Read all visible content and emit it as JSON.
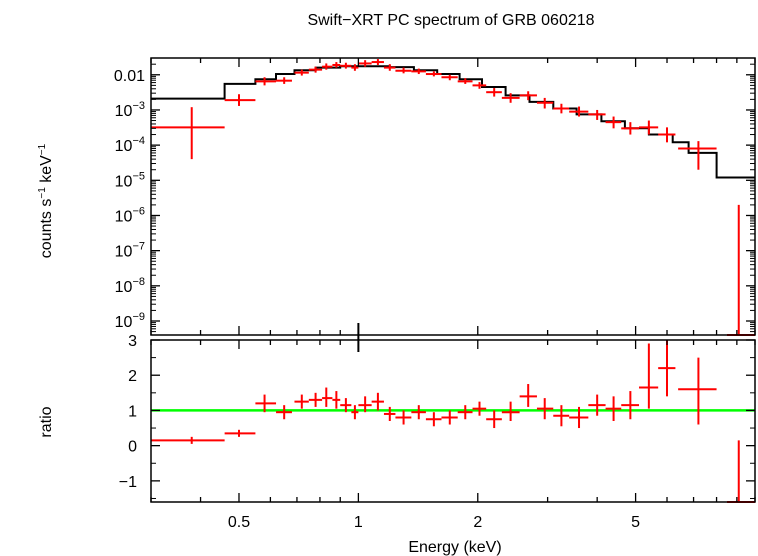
{
  "chart_data": [
    {
      "type": "scatter",
      "panel": "top",
      "title": "Swift−XRT PC spectrum of GRB 060218",
      "ylabel_parts": [
        "counts s",
        "−1",
        " keV",
        "−1"
      ],
      "ylabel": "counts s−1 keV−1",
      "yscale": "log",
      "xlim": [
        0.3,
        10
      ],
      "ylim": [
        4e-10,
        0.03
      ],
      "ytick_labels": [
        {
          "v": 0.01,
          "text": "0.01"
        },
        {
          "v": 0.001,
          "base": "10",
          "exp": "−3"
        },
        {
          "v": 0.0001,
          "base": "10",
          "exp": "−4"
        },
        {
          "v": 1e-05,
          "base": "10",
          "exp": "−5"
        },
        {
          "v": 1e-06,
          "base": "10",
          "exp": "−6"
        },
        {
          "v": 1e-07,
          "base": "10",
          "exp": "−7"
        },
        {
          "v": 1e-08,
          "base": "10",
          "exp": "−8"
        },
        {
          "v": 1e-09,
          "base": "10",
          "exp": "−9"
        }
      ],
      "series": [
        {
          "name": "data",
          "color": "#ff0000",
          "points": [
            {
              "x": 0.38,
              "xlo": 0.3,
              "xhi": 0.46,
              "y": 0.00032,
              "ylo": 4e-05,
              "yhi": 0.0012
            },
            {
              "x": 0.5,
              "xlo": 0.46,
              "xhi": 0.55,
              "y": 0.0019,
              "ylo": 0.0013,
              "yhi": 0.0028
            },
            {
              "x": 0.58,
              "xlo": 0.55,
              "xhi": 0.62,
              "y": 0.0065,
              "ylo": 0.005,
              "yhi": 0.0085
            },
            {
              "x": 0.65,
              "xlo": 0.62,
              "xhi": 0.68,
              "y": 0.0068,
              "ylo": 0.0055,
              "yhi": 0.0085
            },
            {
              "x": 0.72,
              "xlo": 0.69,
              "xhi": 0.75,
              "y": 0.0115,
              "ylo": 0.0095,
              "yhi": 0.014
            },
            {
              "x": 0.78,
              "xlo": 0.75,
              "xhi": 0.81,
              "y": 0.014,
              "ylo": 0.0115,
              "yhi": 0.017
            },
            {
              "x": 0.83,
              "xlo": 0.81,
              "xhi": 0.86,
              "y": 0.017,
              "ylo": 0.014,
              "yhi": 0.021
            },
            {
              "x": 0.88,
              "xlo": 0.86,
              "xhi": 0.9,
              "y": 0.019,
              "ylo": 0.016,
              "yhi": 0.023
            },
            {
              "x": 0.93,
              "xlo": 0.9,
              "xhi": 0.96,
              "y": 0.018,
              "ylo": 0.015,
              "yhi": 0.022
            },
            {
              "x": 0.98,
              "xlo": 0.96,
              "xhi": 1.0,
              "y": 0.016,
              "ylo": 0.013,
              "yhi": 0.02
            },
            {
              "x": 1.04,
              "xlo": 1.0,
              "xhi": 1.08,
              "y": 0.021,
              "ylo": 0.017,
              "yhi": 0.026
            },
            {
              "x": 1.12,
              "xlo": 1.08,
              "xhi": 1.16,
              "y": 0.023,
              "ylo": 0.019,
              "yhi": 0.028
            },
            {
              "x": 1.2,
              "xlo": 1.16,
              "xhi": 1.24,
              "y": 0.016,
              "ylo": 0.013,
              "yhi": 0.02
            },
            {
              "x": 1.3,
              "xlo": 1.24,
              "xhi": 1.36,
              "y": 0.013,
              "ylo": 0.011,
              "yhi": 0.016
            },
            {
              "x": 1.42,
              "xlo": 1.36,
              "xhi": 1.48,
              "y": 0.0125,
              "ylo": 0.0105,
              "yhi": 0.015
            },
            {
              "x": 1.55,
              "xlo": 1.48,
              "xhi": 1.62,
              "y": 0.0105,
              "ylo": 0.009,
              "yhi": 0.0125
            },
            {
              "x": 1.7,
              "xlo": 1.62,
              "xhi": 1.78,
              "y": 0.0085,
              "ylo": 0.007,
              "yhi": 0.01
            },
            {
              "x": 1.86,
              "xlo": 1.78,
              "xhi": 1.94,
              "y": 0.0065,
              "ylo": 0.0055,
              "yhi": 0.008
            },
            {
              "x": 2.02,
              "xlo": 1.94,
              "xhi": 2.1,
              "y": 0.005,
              "ylo": 0.004,
              "yhi": 0.0062
            },
            {
              "x": 2.2,
              "xlo": 2.1,
              "xhi": 2.3,
              "y": 0.0032,
              "ylo": 0.0024,
              "yhi": 0.0042
            },
            {
              "x": 2.42,
              "xlo": 2.3,
              "xhi": 2.55,
              "y": 0.0022,
              "ylo": 0.0016,
              "yhi": 0.003
            },
            {
              "x": 2.68,
              "xlo": 2.55,
              "xhi": 2.82,
              "y": 0.0026,
              "ylo": 0.0019,
              "yhi": 0.0034
            },
            {
              "x": 2.95,
              "xlo": 2.82,
              "xhi": 3.1,
              "y": 0.0016,
              "ylo": 0.0011,
              "yhi": 0.0022
            },
            {
              "x": 3.25,
              "xlo": 3.1,
              "xhi": 3.4,
              "y": 0.0011,
              "ylo": 0.0008,
              "yhi": 0.0015
            },
            {
              "x": 3.6,
              "xlo": 3.4,
              "xhi": 3.8,
              "y": 0.0009,
              "ylo": 0.00065,
              "yhi": 0.00125
            },
            {
              "x": 4.0,
              "xlo": 3.8,
              "xhi": 4.2,
              "y": 0.00075,
              "ylo": 0.00052,
              "yhi": 0.001
            },
            {
              "x": 4.4,
              "xlo": 4.2,
              "xhi": 4.6,
              "y": 0.00045,
              "ylo": 0.0003,
              "yhi": 0.00065
            },
            {
              "x": 4.85,
              "xlo": 4.6,
              "xhi": 5.1,
              "y": 0.0003,
              "ylo": 0.0002,
              "yhi": 0.00045
            },
            {
              "x": 5.4,
              "xlo": 5.1,
              "xhi": 5.7,
              "y": 0.00032,
              "ylo": 0.0002,
              "yhi": 0.0005
            },
            {
              "x": 6.0,
              "xlo": 5.7,
              "xhi": 6.3,
              "y": 0.0002,
              "ylo": 0.00012,
              "yhi": 0.00032
            },
            {
              "x": 7.2,
              "xlo": 6.4,
              "xhi": 8.0,
              "y": 8e-05,
              "ylo": 2e-05,
              "yhi": 0.00013
            },
            {
              "x": 9.1,
              "xlo": 8.5,
              "xhi": 10.0,
              "y": 4e-10,
              "ylo": 4e-10,
              "yhi": 2e-06
            }
          ]
        },
        {
          "name": "model",
          "color": "#000000",
          "steps": [
            {
              "x0": 0.3,
              "x1": 0.46,
              "y": 0.0021
            },
            {
              "x0": 0.46,
              "x1": 0.55,
              "y": 0.0055
            },
            {
              "x0": 0.55,
              "x1": 0.62,
              "y": 0.0075
            },
            {
              "x0": 0.62,
              "x1": 0.69,
              "y": 0.0105
            },
            {
              "x0": 0.69,
              "x1": 0.78,
              "y": 0.0135
            },
            {
              "x0": 0.78,
              "x1": 0.9,
              "y": 0.016
            },
            {
              "x0": 0.9,
              "x1": 1.02,
              "y": 0.0175
            },
            {
              "x0": 1.02,
              "x1": 1.2,
              "y": 0.0175
            },
            {
              "x0": 1.2,
              "x1": 1.38,
              "y": 0.0165
            },
            {
              "x0": 1.38,
              "x1": 1.58,
              "y": 0.0135
            },
            {
              "x0": 1.58,
              "x1": 1.8,
              "y": 0.0105
            },
            {
              "x0": 1.8,
              "x1": 2.05,
              "y": 0.0075
            },
            {
              "x0": 2.05,
              "x1": 2.35,
              "y": 0.0045
            },
            {
              "x0": 2.35,
              "x1": 2.7,
              "y": 0.0026
            },
            {
              "x0": 2.7,
              "x1": 3.1,
              "y": 0.0017
            },
            {
              "x0": 3.1,
              "x1": 3.55,
              "y": 0.0011
            },
            {
              "x0": 3.55,
              "x1": 4.1,
              "y": 0.00075
            },
            {
              "x0": 4.1,
              "x1": 4.7,
              "y": 0.00048
            },
            {
              "x0": 4.7,
              "x1": 5.4,
              "y": 0.0003
            },
            {
              "x0": 5.4,
              "x1": 6.2,
              "y": 0.0002
            },
            {
              "x0": 6.2,
              "x1": 6.8,
              "y": 0.00012
            },
            {
              "x0": 6.8,
              "x1": 8.0,
              "y": 6e-05
            },
            {
              "x0": 8.0,
              "x1": 10.0,
              "y": 1.2e-05
            }
          ]
        }
      ]
    },
    {
      "type": "scatter",
      "panel": "bottom",
      "xlabel": "Energy (keV)",
      "ylabel": "ratio",
      "xscale": "log",
      "xlim": [
        0.3,
        10
      ],
      "ylim": [
        -1.6,
        3.0
      ],
      "xticks": [
        0.5,
        1,
        2,
        5
      ],
      "xtick_labels": [
        "0.5",
        "1",
        "2",
        "5"
      ],
      "yticks": [
        -1,
        0,
        1,
        2,
        3
      ],
      "ytick_labels": [
        "−1",
        "0",
        "1",
        "2",
        "3"
      ],
      "reference_line": {
        "y": 1,
        "color": "#00ff00"
      },
      "series": [
        {
          "name": "ratio",
          "color": "#ff0000",
          "points": [
            {
              "x": 0.38,
              "xlo": 0.3,
              "xhi": 0.46,
              "y": 0.15,
              "ylo": 0.05,
              "yhi": 0.25
            },
            {
              "x": 0.5,
              "xlo": 0.46,
              "xhi": 0.55,
              "y": 0.35,
              "ylo": 0.25,
              "yhi": 0.45
            },
            {
              "x": 0.58,
              "xlo": 0.55,
              "xhi": 0.62,
              "y": 1.2,
              "ylo": 0.95,
              "yhi": 1.45
            },
            {
              "x": 0.65,
              "xlo": 0.62,
              "xhi": 0.68,
              "y": 0.95,
              "ylo": 0.75,
              "yhi": 1.15
            },
            {
              "x": 0.72,
              "xlo": 0.69,
              "xhi": 0.75,
              "y": 1.25,
              "ylo": 1.05,
              "yhi": 1.45
            },
            {
              "x": 0.78,
              "xlo": 0.75,
              "xhi": 0.81,
              "y": 1.3,
              "ylo": 1.1,
              "yhi": 1.5
            },
            {
              "x": 0.83,
              "xlo": 0.81,
              "xhi": 0.86,
              "y": 1.35,
              "ylo": 1.1,
              "yhi": 1.65
            },
            {
              "x": 0.88,
              "xlo": 0.86,
              "xhi": 0.9,
              "y": 1.3,
              "ylo": 1.05,
              "yhi": 1.55
            },
            {
              "x": 0.93,
              "xlo": 0.9,
              "xhi": 0.96,
              "y": 1.15,
              "ylo": 0.95,
              "yhi": 1.35
            },
            {
              "x": 0.98,
              "xlo": 0.96,
              "xhi": 1.0,
              "y": 0.95,
              "ylo": 0.75,
              "yhi": 1.15
            },
            {
              "x": 1.04,
              "xlo": 1.0,
              "xhi": 1.08,
              "y": 1.15,
              "ylo": 0.95,
              "yhi": 1.4
            },
            {
              "x": 1.12,
              "xlo": 1.08,
              "xhi": 1.16,
              "y": 1.25,
              "ylo": 1.0,
              "yhi": 1.5
            },
            {
              "x": 1.2,
              "xlo": 1.16,
              "xhi": 1.24,
              "y": 0.9,
              "ylo": 0.7,
              "yhi": 1.1
            },
            {
              "x": 1.3,
              "xlo": 1.24,
              "xhi": 1.36,
              "y": 0.8,
              "ylo": 0.6,
              "yhi": 1.0
            },
            {
              "x": 1.42,
              "xlo": 1.36,
              "xhi": 1.48,
              "y": 0.95,
              "ylo": 0.75,
              "yhi": 1.15
            },
            {
              "x": 1.55,
              "xlo": 1.48,
              "xhi": 1.62,
              "y": 0.75,
              "ylo": 0.55,
              "yhi": 0.95
            },
            {
              "x": 1.7,
              "xlo": 1.62,
              "xhi": 1.78,
              "y": 0.8,
              "ylo": 0.6,
              "yhi": 1.0
            },
            {
              "x": 1.86,
              "xlo": 1.78,
              "xhi": 1.94,
              "y": 0.95,
              "ylo": 0.75,
              "yhi": 1.15
            },
            {
              "x": 2.02,
              "xlo": 1.94,
              "xhi": 2.1,
              "y": 1.05,
              "ylo": 0.85,
              "yhi": 1.25
            },
            {
              "x": 2.2,
              "xlo": 2.1,
              "xhi": 2.3,
              "y": 0.75,
              "ylo": 0.5,
              "yhi": 1.0
            },
            {
              "x": 2.42,
              "xlo": 2.3,
              "xhi": 2.55,
              "y": 0.95,
              "ylo": 0.7,
              "yhi": 1.25
            },
            {
              "x": 2.68,
              "xlo": 2.55,
              "xhi": 2.82,
              "y": 1.4,
              "ylo": 1.1,
              "yhi": 1.75
            },
            {
              "x": 2.95,
              "xlo": 2.82,
              "xhi": 3.1,
              "y": 1.05,
              "ylo": 0.75,
              "yhi": 1.35
            },
            {
              "x": 3.25,
              "xlo": 3.1,
              "xhi": 3.4,
              "y": 0.85,
              "ylo": 0.55,
              "yhi": 1.15
            },
            {
              "x": 3.6,
              "xlo": 3.4,
              "xhi": 3.8,
              "y": 0.8,
              "ylo": 0.5,
              "yhi": 1.1
            },
            {
              "x": 4.0,
              "xlo": 3.8,
              "xhi": 4.2,
              "y": 1.15,
              "ylo": 0.85,
              "yhi": 1.45
            },
            {
              "x": 4.4,
              "xlo": 4.2,
              "xhi": 4.6,
              "y": 1.05,
              "ylo": 0.7,
              "yhi": 1.4
            },
            {
              "x": 4.85,
              "xlo": 4.6,
              "xhi": 5.1,
              "y": 1.15,
              "ylo": 0.75,
              "yhi": 1.55
            },
            {
              "x": 5.4,
              "xlo": 5.1,
              "xhi": 5.7,
              "y": 1.65,
              "ylo": 1.05,
              "yhi": 2.9
            },
            {
              "x": 6.0,
              "xlo": 5.7,
              "xhi": 6.3,
              "y": 2.2,
              "ylo": 1.4,
              "yhi": 3.0
            },
            {
              "x": 7.2,
              "xlo": 6.4,
              "xhi": 8.0,
              "y": 1.6,
              "ylo": 0.6,
              "yhi": 2.5
            },
            {
              "x": 9.1,
              "xlo": 8.5,
              "xhi": 10.0,
              "y": -1.6,
              "ylo": -1.6,
              "yhi": 0.15
            }
          ]
        }
      ]
    }
  ]
}
